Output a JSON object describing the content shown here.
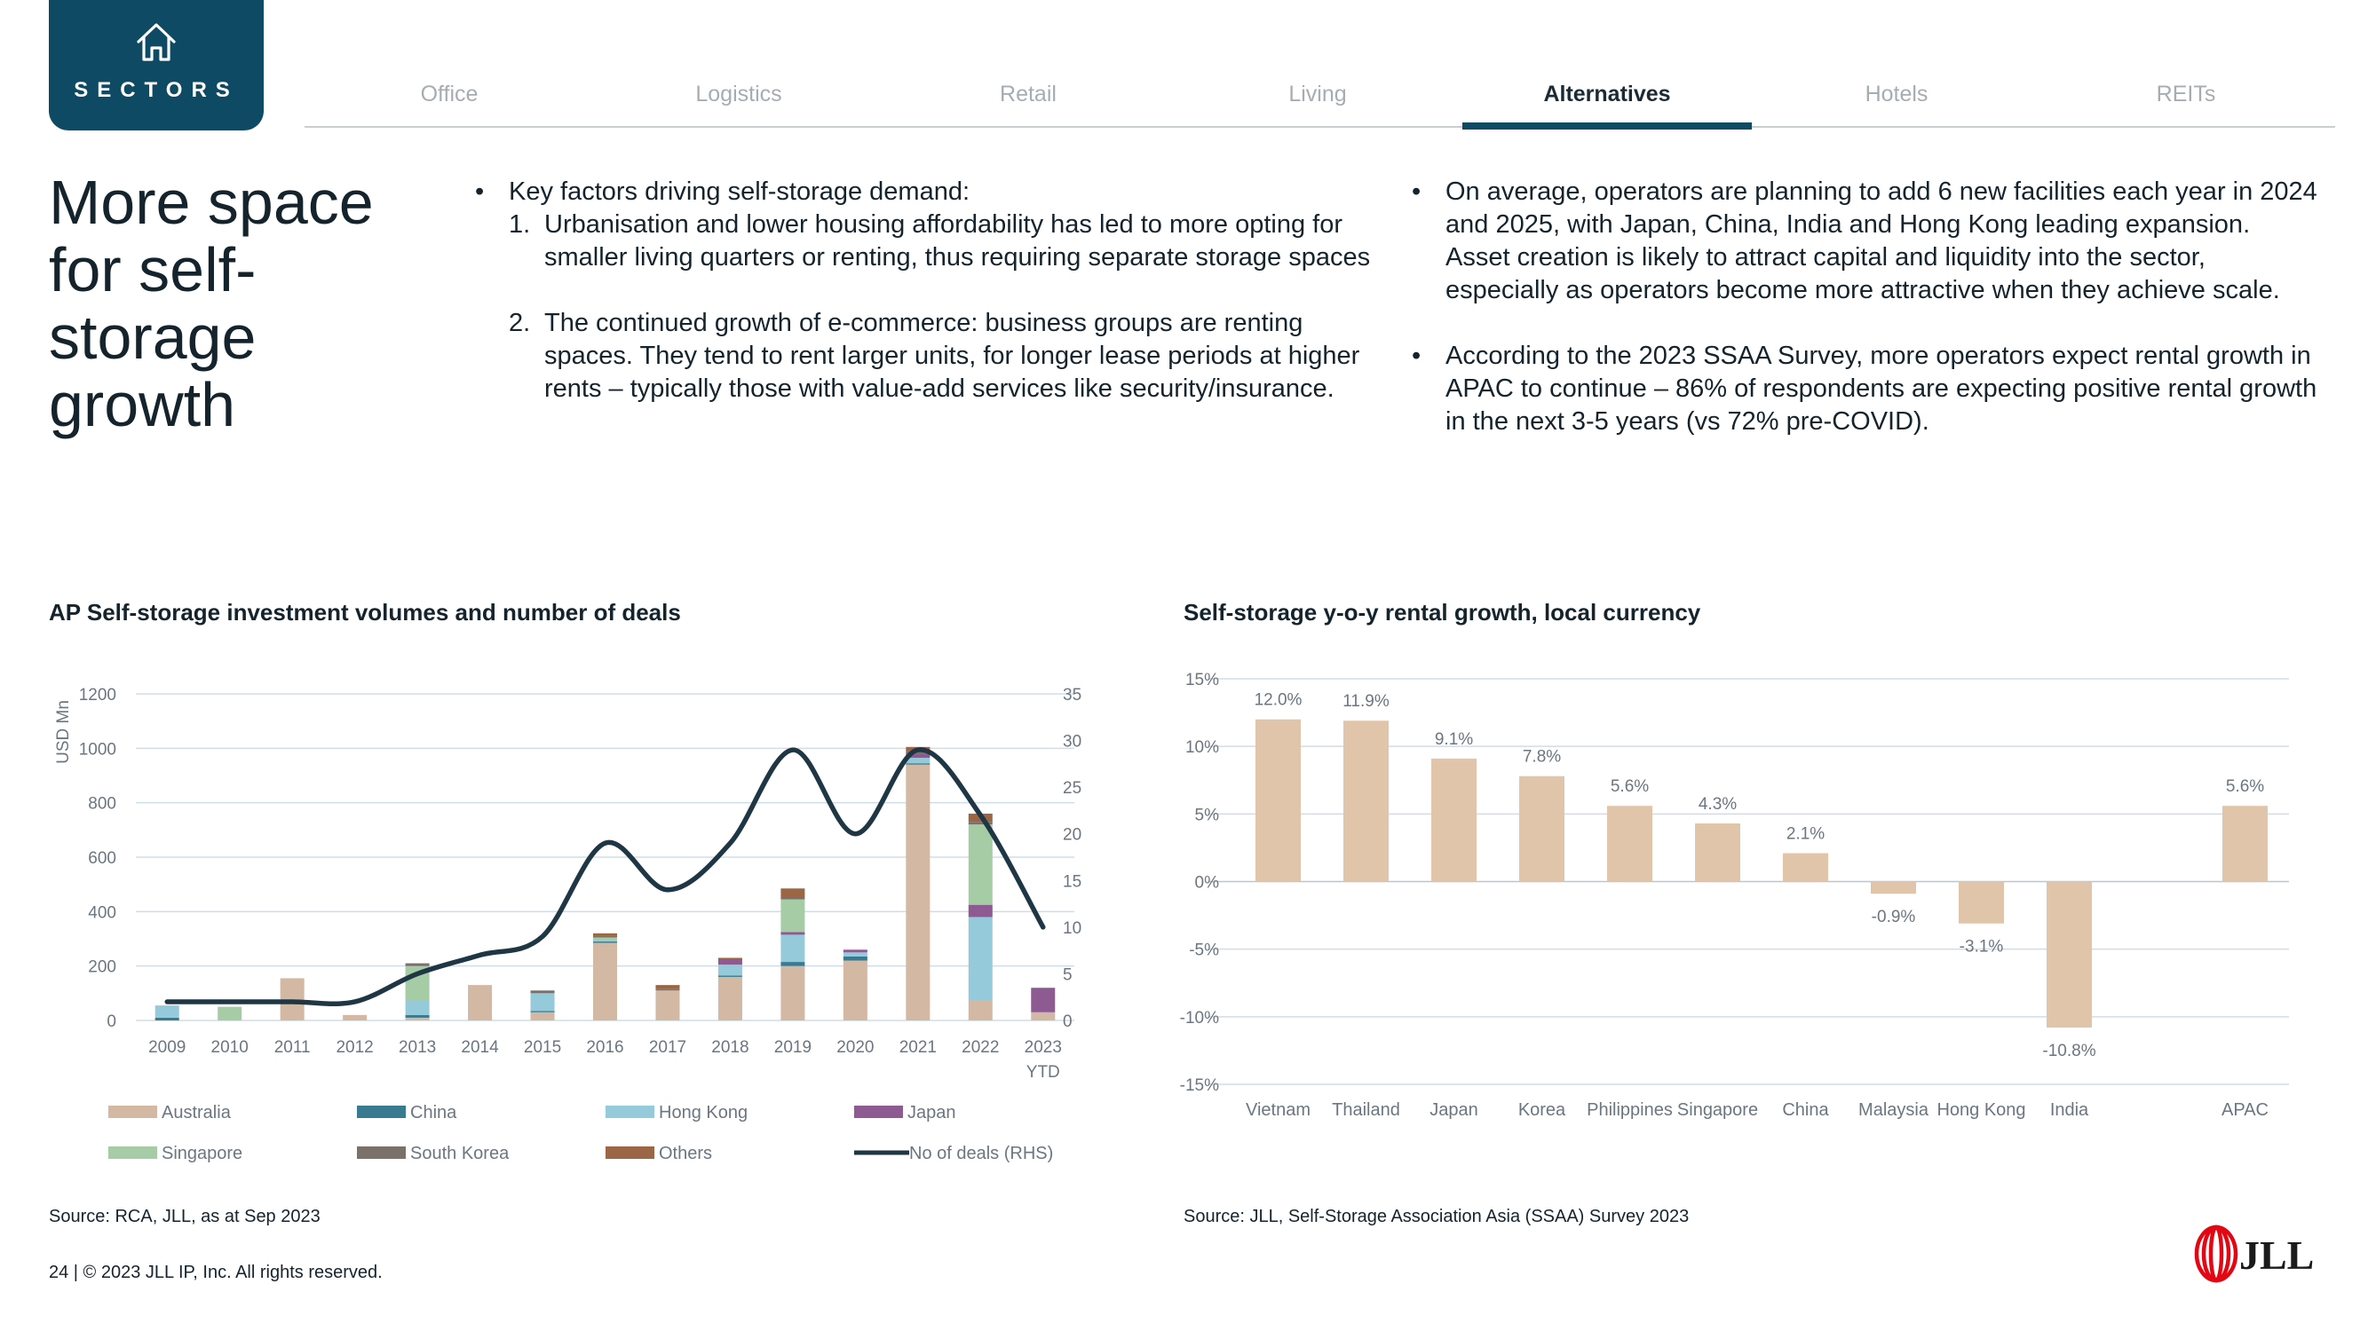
{
  "header": {
    "sectors_label": "SECTORS",
    "nav_tabs": [
      {
        "label": "Office",
        "active": false
      },
      {
        "label": "Logistics",
        "active": false
      },
      {
        "label": "Retail",
        "active": false
      },
      {
        "label": "Living",
        "active": false
      },
      {
        "label": "Alternatives",
        "active": true
      },
      {
        "label": "Hotels",
        "active": false
      },
      {
        "label": "REITs",
        "active": false
      }
    ]
  },
  "headline": "More space for self-storage growth",
  "left_bullets": {
    "intro": "Key factors driving self-storage demand:",
    "items": [
      {
        "num": "1.",
        "text": "Urbanisation and lower housing affordability has led to more opting for smaller living quarters or renting, thus requiring separate storage spaces"
      },
      {
        "num": "2.",
        "text": "The continued growth of e-commerce: business groups are renting spaces. They tend to rent larger units, for longer lease periods at higher rents – typically those with value-add services like security/insurance."
      }
    ]
  },
  "right_bullets": [
    "On average, operators are planning to add 6 new facilities each year in 2024 and 2025, with Japan, China, India and Hong Kong leading expansion. Asset creation is likely to attract capital and liquidity into the sector, especially as operators become more attractive when they achieve scale.",
    "According to the 2023 SSAA Survey, more operators expect rental growth in APAC to continue – 86% of respondents are expecting positive rental growth in the next 3-5 years (vs 72% pre-COVID)."
  ],
  "chart_data": [
    {
      "type": "bar",
      "stacked": true,
      "title": "AP Self-storage investment volumes and number of deals",
      "ylabel": "USD Mn",
      "ylim": [
        0,
        1200
      ],
      "y_ticks": [
        0,
        200,
        400,
        600,
        800,
        1000,
        1200
      ],
      "y2lim": [
        0,
        35
      ],
      "y2_ticks": [
        0,
        5,
        10,
        15,
        20,
        25,
        30,
        35
      ],
      "categories": [
        "2009",
        "2010",
        "2011",
        "2012",
        "2013",
        "2014",
        "2015",
        "2016",
        "2017",
        "2018",
        "2019",
        "2020",
        "2021",
        "2022",
        "2023 YTD"
      ],
      "series": [
        {
          "name": "Australia",
          "color": "#d3b8a3",
          "values": [
            0,
            0,
            155,
            20,
            10,
            130,
            30,
            285,
            110,
            160,
            200,
            220,
            940,
            75,
            30
          ]
        },
        {
          "name": "China",
          "color": "#3a7a90",
          "values": [
            10,
            0,
            0,
            0,
            10,
            0,
            5,
            5,
            0,
            5,
            15,
            15,
            5,
            0,
            0
          ]
        },
        {
          "name": "Hong Kong",
          "color": "#94cad9",
          "values": [
            45,
            0,
            0,
            0,
            55,
            0,
            65,
            5,
            0,
            40,
            100,
            15,
            20,
            305,
            0
          ]
        },
        {
          "name": "Japan",
          "color": "#8e5a92",
          "values": [
            0,
            0,
            0,
            0,
            0,
            0,
            0,
            0,
            0,
            20,
            10,
            10,
            15,
            45,
            90
          ]
        },
        {
          "name": "Singapore",
          "color": "#a5cca5",
          "values": [
            0,
            50,
            0,
            0,
            125,
            0,
            0,
            10,
            0,
            0,
            120,
            0,
            0,
            295,
            0
          ]
        },
        {
          "name": "South Korea",
          "color": "#7a716b",
          "values": [
            0,
            0,
            0,
            0,
            10,
            0,
            10,
            5,
            5,
            0,
            5,
            0,
            10,
            10,
            0
          ]
        },
        {
          "name": "Others",
          "color": "#9a6645",
          "values": [
            0,
            0,
            0,
            0,
            0,
            0,
            0,
            10,
            15,
            5,
            35,
            0,
            15,
            30,
            0
          ]
        }
      ],
      "line": {
        "name": "No of deals (RHS)",
        "color": "#1f3644",
        "values": [
          2,
          2,
          2,
          2,
          5,
          7,
          9,
          19,
          14,
          19,
          29,
          20,
          29,
          22,
          10
        ]
      }
    },
    {
      "type": "bar",
      "title": "Self-storage y-o-y rental growth, local currency",
      "ylim": [
        -15,
        15
      ],
      "y_ticks": [
        15,
        10,
        5,
        0,
        -5,
        -10,
        -15
      ],
      "y_tick_labels": [
        "15%",
        "10%",
        "5%",
        "0%",
        "-5%",
        "-10%",
        "-15%"
      ],
      "categories": [
        "Vietnam",
        "Thailand",
        "Japan",
        "Korea",
        "Philippines",
        "Singapore",
        "China",
        "Malaysia",
        "Hong Kong",
        "India",
        "",
        "APAC"
      ],
      "values": [
        12.0,
        11.9,
        9.1,
        7.8,
        5.6,
        4.3,
        2.1,
        -0.9,
        -3.1,
        -10.8,
        null,
        5.6
      ],
      "data_labels": [
        "12.0%",
        "11.9%",
        "9.1%",
        "7.8%",
        "5.6%",
        "4.3%",
        "2.1%",
        "-0.9%",
        "-3.1%",
        "-10.8%",
        "",
        "5.6%"
      ],
      "color": "#e0c5ab"
    }
  ],
  "left_chart_source": "Source: RCA, JLL, as at Sep 2023",
  "right_chart_source": "Source: JLL, Self-Storage Association Asia (SSAA) Survey 2023",
  "footer": "24  |  © 2023 JLL IP, Inc. All rights reserved.",
  "logo_text": "JLL",
  "colors": {
    "brand_navy": "#0e4a63",
    "logo_red": "#e30613"
  }
}
